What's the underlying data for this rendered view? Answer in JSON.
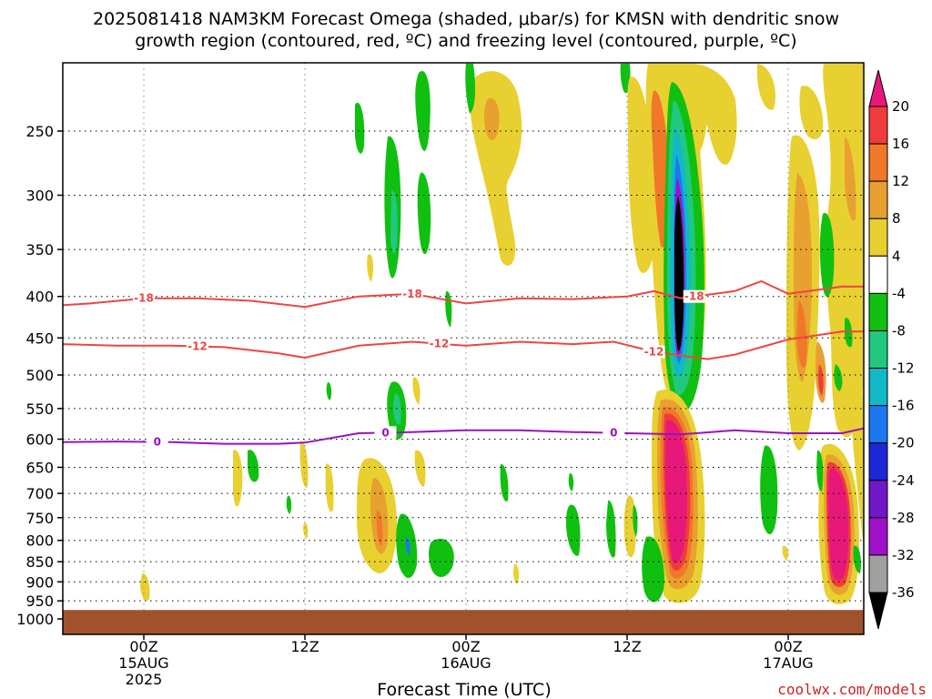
{
  "chart_data": {
    "type": "heatmap",
    "title": "2025081418 NAM3KM Forecast Omega (shaded, μbar/s) for KMSN with dendritic snow growth region (contoured, red, ºC) and freezing level (contoured, purple, ºC)",
    "title_lines": [
      "2025081418 NAM3KM Forecast Omega (shaded, μbar/s) for KMSN with dendritic snow",
      "growth region (contoured, red, ºC) and freezing level (contoured, purple, ºC)"
    ],
    "xlabel": "Forecast Time (UTC)",
    "ylabel": "",
    "x_range_hours_from_20250815_00Z": [
      -6,
      54
    ],
    "y_axis": "pressure (hPa), inverted",
    "ylim": [
      1000,
      200
    ],
    "y_ticks": [
      250,
      300,
      350,
      400,
      450,
      500,
      550,
      600,
      650,
      700,
      750,
      800,
      850,
      900,
      950,
      1000
    ],
    "x_ticks": [
      {
        "hour": 0,
        "lines": [
          "00Z",
          "15AUG",
          "2025"
        ]
      },
      {
        "hour": 12,
        "lines": [
          "12Z"
        ]
      },
      {
        "hour": 24,
        "lines": [
          "00Z",
          "16AUG"
        ]
      },
      {
        "hour": 36,
        "lines": [
          "12Z"
        ]
      },
      {
        "hour": 48,
        "lines": [
          "00Z",
          "17AUG"
        ]
      }
    ],
    "colorbar": {
      "ticks": [
        "20",
        "16",
        "12",
        "8",
        "4",
        "-4",
        "-8",
        "-12",
        "-16",
        "-20",
        "-24",
        "-28",
        "-32",
        "-36"
      ],
      "colors": [
        "#e8187a",
        "#f03c3c",
        "#f07828",
        "#e8a030",
        "#e8d030",
        "#ffffff",
        "#10c010",
        "#20c880",
        "#10b8c8",
        "#1c78f0",
        "#1c28d8",
        "#7018c8",
        "#a010c8",
        "#a0a0a0",
        "#000000"
      ]
    },
    "dgz_contours": [
      {
        "label": "-18",
        "color": "#ee4444",
        "label_hours": [
          0,
          20,
          41
        ],
        "points": [
          [
            -6,
            410
          ],
          [
            -4,
            408
          ],
          [
            0,
            402
          ],
          [
            4,
            402
          ],
          [
            8,
            405
          ],
          [
            12,
            412
          ],
          [
            16,
            400
          ],
          [
            20,
            397
          ],
          [
            24,
            408
          ],
          [
            28,
            402
          ],
          [
            32,
            403
          ],
          [
            36,
            400
          ],
          [
            38,
            394
          ],
          [
            40,
            402
          ],
          [
            44,
            394
          ],
          [
            46,
            383
          ],
          [
            48,
            397
          ],
          [
            52,
            389
          ],
          [
            54,
            389
          ]
        ]
      },
      {
        "label": "-12",
        "color": "#ee4444",
        "label_hours": [
          4,
          22,
          38
        ],
        "points": [
          [
            -6,
            458
          ],
          [
            -2,
            460
          ],
          [
            2,
            460
          ],
          [
            6,
            462
          ],
          [
            10,
            470
          ],
          [
            12,
            476
          ],
          [
            16,
            460
          ],
          [
            20,
            455
          ],
          [
            24,
            460
          ],
          [
            28,
            455
          ],
          [
            32,
            458
          ],
          [
            35,
            455
          ],
          [
            38,
            468
          ],
          [
            42,
            478
          ],
          [
            44,
            472
          ],
          [
            46,
            462
          ],
          [
            48,
            452
          ],
          [
            52,
            442
          ],
          [
            54,
            442
          ]
        ]
      }
    ],
    "freezing_level": {
      "label": "0",
      "color": "#9a10c0",
      "label_hours": [
        1,
        18,
        35
      ],
      "points": [
        [
          -6,
          605
        ],
        [
          -2,
          604
        ],
        [
          2,
          605
        ],
        [
          6,
          608
        ],
        [
          10,
          608
        ],
        [
          12,
          606
        ],
        [
          16,
          590
        ],
        [
          20,
          588
        ],
        [
          24,
          585
        ],
        [
          28,
          585
        ],
        [
          32,
          588
        ],
        [
          36,
          590
        ],
        [
          40,
          592
        ],
        [
          44,
          585
        ],
        [
          48,
          590
        ],
        [
          52,
          590
        ],
        [
          54,
          580
        ]
      ]
    },
    "terrain": {
      "top_hpa": 975,
      "color": "#a0522d"
    }
  },
  "footer": {
    "credit": "coolwx.com/models"
  }
}
